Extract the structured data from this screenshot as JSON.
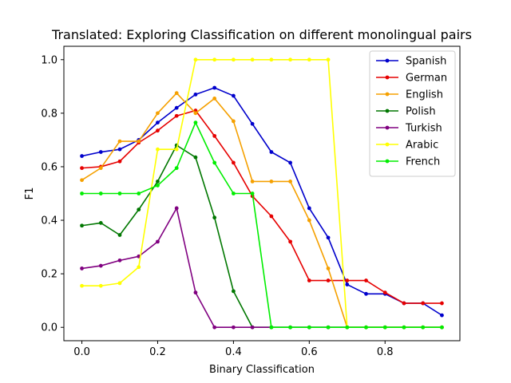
{
  "chart_data": {
    "type": "line",
    "title": "Translated: Exploring Classification on different monolingual pairs",
    "xlabel": "Binary Classification",
    "ylabel": "F1",
    "xlim": [
      -0.0475,
      0.9975
    ],
    "ylim": [
      -0.05,
      1.05
    ],
    "xticks": [
      0.0,
      0.2,
      0.4,
      0.6,
      0.8
    ],
    "xtick_labels": [
      "0.0",
      "0.2",
      "0.4",
      "0.6",
      "0.8"
    ],
    "yticks": [
      0.0,
      0.2,
      0.4,
      0.6,
      0.8,
      1.0
    ],
    "ytick_labels": [
      "0.0",
      "0.2",
      "0.4",
      "0.6",
      "0.8",
      "1.0"
    ],
    "grid": false,
    "legend": "top-right",
    "x": [
      0.0,
      0.05,
      0.1,
      0.15,
      0.2,
      0.25,
      0.3,
      0.35,
      0.4,
      0.45,
      0.5,
      0.55,
      0.6,
      0.65,
      0.7,
      0.75,
      0.8,
      0.85,
      0.9,
      0.95
    ],
    "series": [
      {
        "name": "Spanish",
        "color": "#0000cc",
        "values": [
          0.64,
          0.655,
          0.665,
          0.7,
          0.765,
          0.82,
          0.87,
          0.895,
          0.865,
          0.76,
          0.655,
          0.615,
          0.445,
          0.335,
          0.16,
          0.125,
          0.125,
          0.09,
          0.09,
          0.045
        ]
      },
      {
        "name": "German",
        "color": "#e60000",
        "values": [
          0.595,
          0.6,
          0.62,
          0.69,
          0.735,
          0.79,
          0.81,
          0.715,
          0.615,
          0.49,
          0.415,
          0.32,
          0.175,
          0.175,
          0.175,
          0.175,
          0.13,
          0.09,
          0.09,
          0.09
        ]
      },
      {
        "name": "English",
        "color": "#f5a000",
        "values": [
          0.55,
          0.595,
          0.695,
          0.695,
          0.8,
          0.875,
          0.8,
          0.855,
          0.77,
          0.545,
          0.545,
          0.545,
          0.4,
          0.22,
          0.0,
          0.0,
          0.0,
          0.0,
          0.0,
          0.0
        ]
      },
      {
        "name": "Polish",
        "color": "#007700",
        "values": [
          0.38,
          0.39,
          0.345,
          0.44,
          0.545,
          0.68,
          0.635,
          0.41,
          0.135,
          0.0,
          0.0,
          0.0,
          0.0,
          0.0,
          0.0,
          0.0,
          0.0,
          0.0,
          0.0,
          0.0
        ]
      },
      {
        "name": "Turkish",
        "color": "#800080",
        "values": [
          0.22,
          0.23,
          0.25,
          0.265,
          0.32,
          0.445,
          0.13,
          0.0,
          0.0,
          0.0,
          0.0,
          0.0,
          0.0,
          0.0,
          0.0,
          0.0,
          0.0,
          0.0,
          0.0,
          0.0
        ]
      },
      {
        "name": "Arabic",
        "color": "#ffff00",
        "values": [
          0.155,
          0.155,
          0.165,
          0.225,
          0.665,
          0.665,
          1.0,
          1.0,
          1.0,
          1.0,
          1.0,
          1.0,
          1.0,
          1.0,
          0.0,
          0.0,
          0.0,
          0.0,
          0.0,
          0.0
        ]
      },
      {
        "name": "French",
        "color": "#00ee00",
        "values": [
          0.5,
          0.5,
          0.5,
          0.5,
          0.53,
          0.595,
          0.765,
          0.615,
          0.5,
          0.5,
          0.0,
          0.0,
          0.0,
          0.0,
          0.0,
          0.0,
          0.0,
          0.0,
          0.0,
          0.0
        ]
      }
    ]
  }
}
